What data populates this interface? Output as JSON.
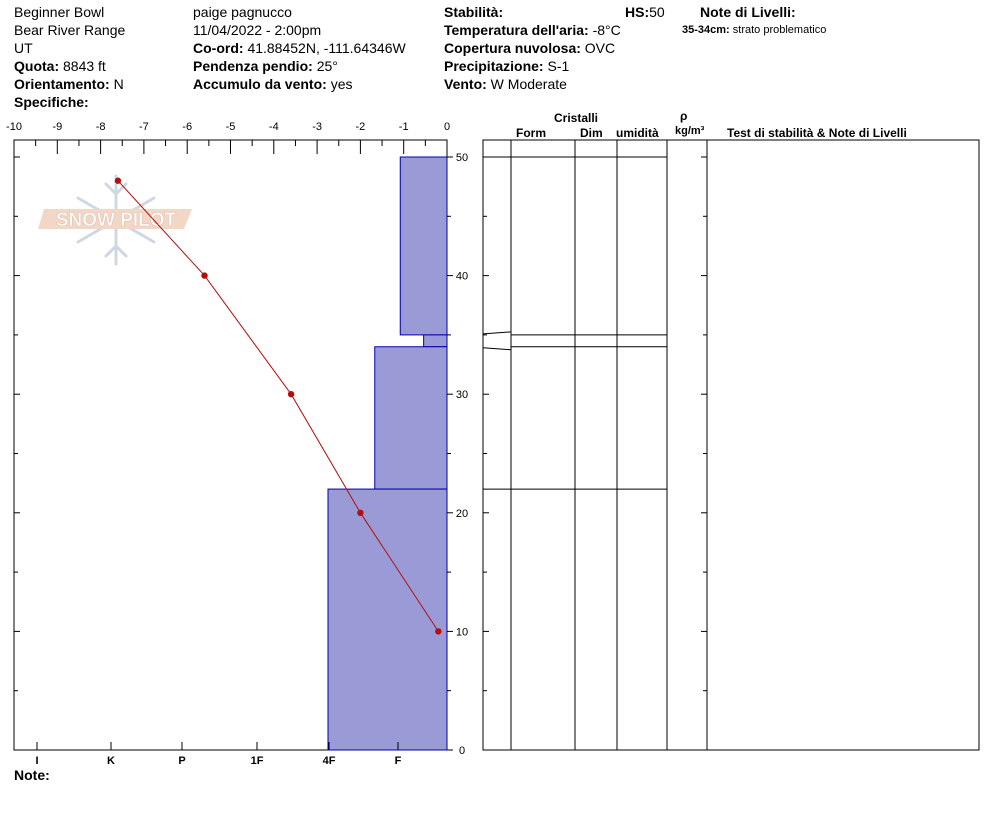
{
  "header": {
    "location": "Beginner Bowl",
    "range": "Bear River Range",
    "state": "UT",
    "elevation_label": "Quota:",
    "elevation_value": "8843 ft",
    "aspect_label": "Orientamento:",
    "aspect_value": "N",
    "specifics_label": "Specifiche:",
    "observer": "paige pagnucco",
    "datetime": "11/04/2022 - 2:00pm",
    "coord_label": "Co-ord:",
    "coord_value": "41.88452N, -111.64346W",
    "slope_label": "Pendenza pendio:",
    "slope_value": "25°",
    "wind_loading_label": "Accumulo da vento:",
    "wind_loading_value": "yes",
    "stability_label": "Stabilità:",
    "hs_label": "HS:",
    "hs_value": "50",
    "air_temp_label": "Temperatura dell'aria:",
    "air_temp_value": "-8°C",
    "sky_label": "Copertura nuvolosa:",
    "sky_value": "OVC",
    "precip_label": "Precipitazione:",
    "precip_value": "S-1",
    "wind_label": "Vento:",
    "wind_value": "W Moderate",
    "layer_notes_label": "Note di Livelli:",
    "layer_note_depth": "35-34cm:",
    "layer_note_text": "strato problematico"
  },
  "columns": {
    "crystals": "Cristalli",
    "form": "Form",
    "size": "Dim",
    "moisture": "umidità",
    "rho": "ρ",
    "density_unit": "kg/m³",
    "tests": "Test di stabilità & Note di Livelli"
  },
  "footer": {
    "notes_label": "Note:"
  },
  "logo_text": "SNOW PILOT",
  "colors": {
    "hardness_fill": "#9a9ad6",
    "hardness_stroke": "#0000aa",
    "temp_line": "#b01010"
  },
  "chart_data": {
    "type": "snow-profile",
    "depth_axis": {
      "min": 0,
      "max": 50,
      "ticks": [
        0,
        10,
        20,
        30,
        40,
        50
      ]
    },
    "temperature_axis": {
      "min": -10,
      "max": 0,
      "ticks": [
        "-10",
        "-9",
        "-8",
        "-7",
        "-6",
        "-5",
        "-4",
        "-3",
        "-2",
        "-1",
        "0"
      ]
    },
    "hardness_scale": [
      "I",
      "K",
      "P",
      "1F",
      "4F",
      "F"
    ],
    "hardness_layers": [
      {
        "top": 50,
        "bottom": 35,
        "hardness": 1.1
      },
      {
        "top": 35,
        "bottom": 34,
        "hardness": 0.55
      },
      {
        "top": 34,
        "bottom": 22,
        "hardness": 1.7
      },
      {
        "top": 22,
        "bottom": 0,
        "hardness": 2.8
      }
    ],
    "temperature_profile": [
      {
        "depth": 48,
        "temp": -7.6
      },
      {
        "depth": 40,
        "temp": -5.6
      },
      {
        "depth": 30,
        "temp": -3.6
      },
      {
        "depth": 20,
        "temp": -2.0
      },
      {
        "depth": 10,
        "temp": -0.2
      }
    ],
    "layer_boundaries": [
      50,
      35,
      34,
      22
    ]
  }
}
